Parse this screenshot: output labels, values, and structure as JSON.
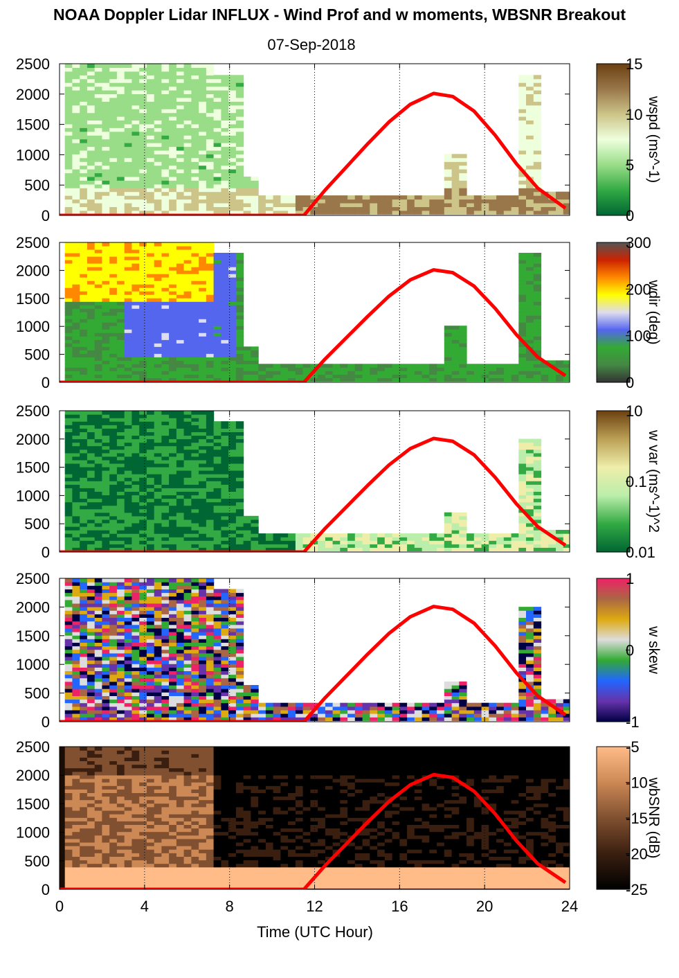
{
  "title": "NOAA Doppler Lidar INFLUX - Wind Prof and w moments, WBSNR Breakout",
  "date": "07-Sep-2018",
  "chart_data": {
    "type": "heatmap",
    "xlabel": "Time (UTC Hour)",
    "xlim": [
      0,
      24
    ],
    "xticks": [
      "0",
      "4",
      "8",
      "12",
      "16",
      "20",
      "24"
    ],
    "ylim": [
      0,
      2500
    ],
    "yticks": [
      "0",
      "500",
      "1000",
      "1500",
      "2000",
      "2500"
    ],
    "sun_curve": {
      "color": "#ff0000",
      "x": [
        0,
        11.5,
        12.5,
        13.5,
        14.5,
        15.5,
        16.5,
        17.6,
        18.5,
        19.5,
        20.5,
        21.5,
        22.5,
        23.8
      ],
      "y": [
        0,
        0,
        420,
        800,
        1180,
        1540,
        1830,
        2010,
        1960,
        1720,
        1320,
        850,
        450,
        120
      ]
    },
    "panels": [
      {
        "variable": "wspd",
        "colorbar_label": "wspd (ms^-1)",
        "colorbar_ticks": [
          "0",
          "5",
          "10",
          "15"
        ],
        "colormap": [
          "#006633",
          "#33aa44",
          "#99dd88",
          "#eeffdd",
          "#ccc488",
          "#99774a",
          "#6b4010"
        ]
      },
      {
        "variable": "wdir",
        "colorbar_label": "wdir (deg)",
        "colorbar_ticks": [
          "0",
          "100",
          "200",
          "300"
        ],
        "colormap": [
          "#333333",
          "#448844",
          "#33aa33",
          "#5566ee",
          "#ddddee",
          "#ffff00",
          "#ff8800",
          "#cc2200",
          "#555555"
        ]
      },
      {
        "variable": "w var",
        "colorbar_label": "w var (ms^-1)^2",
        "colorbar_ticks": [
          "0.01",
          "0.1",
          "10"
        ],
        "colormap": [
          "#006633",
          "#33aa44",
          "#bbeeaa",
          "#eeeeaa",
          "#bba055",
          "#6b4010"
        ]
      },
      {
        "variable": "w skew",
        "colorbar_label": "w skew",
        "colorbar_ticks": [
          "-1",
          "0",
          "1"
        ],
        "colormap": [
          "#000044",
          "#6633aa",
          "#2266ff",
          "#33aa33",
          "#dddddd",
          "#ddaa11",
          "#aa6644",
          "#ee2266"
        ]
      },
      {
        "variable": "wbSNR",
        "colorbar_label": "wbSNR (dB)",
        "colorbar_ticks": [
          "-25",
          "-20",
          "-15",
          "-10",
          "-5"
        ],
        "colormap": [
          "#000000",
          "#3a1f10",
          "#805030",
          "#cc8855",
          "#ffbb88"
        ]
      }
    ]
  }
}
